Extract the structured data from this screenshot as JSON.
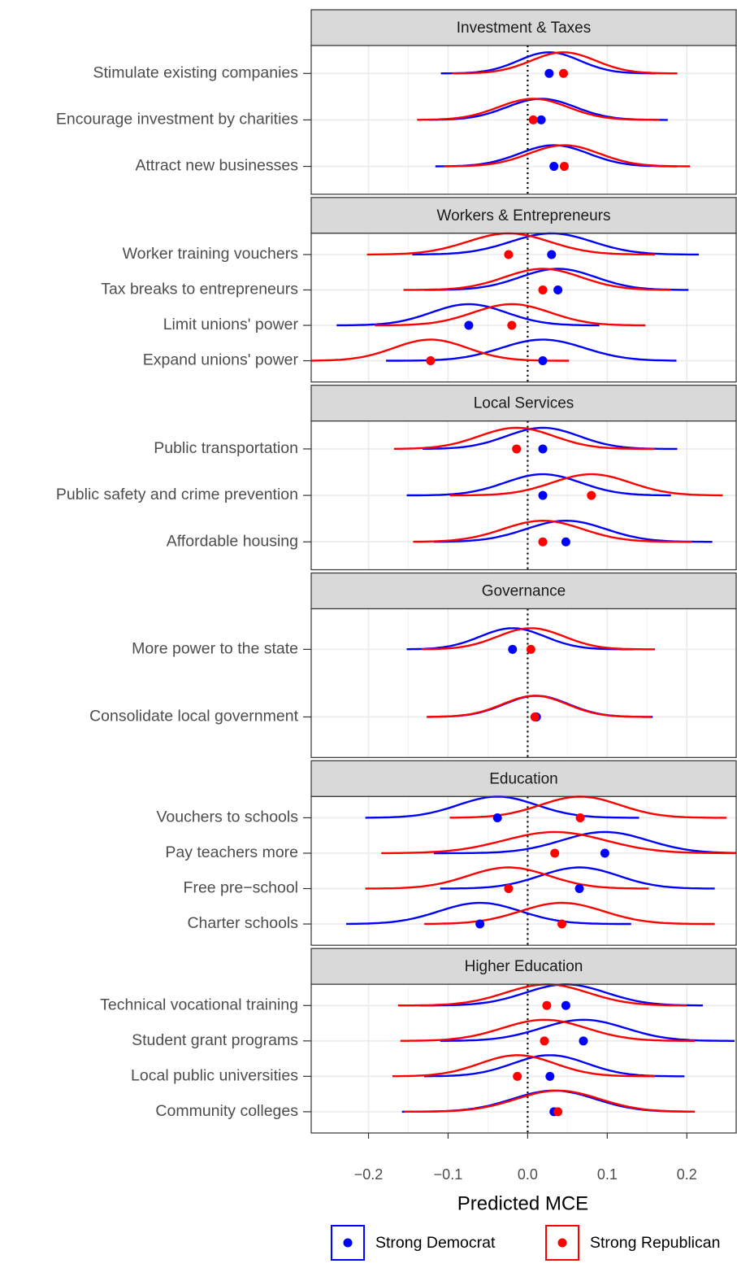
{
  "chart_data": {
    "type": "ridge_dot",
    "xlabel": "Predicted MCE",
    "xlim": [
      -0.272,
      0.262
    ],
    "xticks": [
      {
        "value": -0.2,
        "label": "−0.2"
      },
      {
        "value": -0.1,
        "label": "−0.1"
      },
      {
        "value": 0,
        "label": "0.0"
      },
      0.1,
      0.2
    ],
    "grid": true,
    "vline": 0,
    "legend": "bottom",
    "series": [
      {
        "name": "Strong Democrat",
        "color": "#0000ff"
      },
      {
        "name": "Strong Republican",
        "color": "#ff0000"
      }
    ],
    "panels": [
      {
        "title": "Investment & Taxes",
        "categories": [
          "Stimulate existing companies",
          "Encourage investment by charities",
          "Attract new businesses"
        ],
        "series": [
          {
            "values": [
              0.027,
              0.017,
              0.033
            ],
            "ranges": [
              [
                -0.109,
                0.161
              ],
              [
                -0.125,
                0.176
              ],
              [
                -0.116,
                0.188
              ]
            ]
          },
          {
            "values": [
              0.045,
              0.007,
              0.046
            ],
            "ranges": [
              [
                -0.095,
                0.188
              ],
              [
                -0.139,
                0.166
              ],
              [
                -0.105,
                0.204
              ]
            ]
          }
        ]
      },
      {
        "title": "Workers & Entrepreneurs",
        "categories": [
          "Worker training vouchers",
          "Tax breaks to entrepreneurs",
          "Limit unions' power",
          "Expand unions' power"
        ],
        "series": [
          {
            "values": [
              0.03,
              0.038,
              -0.074,
              0.019
            ],
            "ranges": [
              [
                -0.145,
                0.215
              ],
              [
                -0.13,
                0.202
              ],
              [
                -0.24,
                0.09
              ],
              [
                -0.178,
                0.187
              ]
            ]
          },
          {
            "values": [
              -0.024,
              0.019,
              -0.02,
              -0.122
            ],
            "ranges": [
              [
                -0.202,
                0.16
              ],
              [
                -0.156,
                0.18
              ],
              [
                -0.192,
                0.148
              ],
              [
                -0.272,
                0.052
              ]
            ]
          }
        ]
      },
      {
        "title": "Local Services",
        "categories": [
          "Public transportation",
          "Public safety and crime prevention",
          "Affordable housing"
        ],
        "series": [
          {
            "values": [
              0.019,
              0.019,
              0.048
            ],
            "ranges": [
              [
                -0.132,
                0.188
              ],
              [
                -0.152,
                0.18
              ],
              [
                -0.118,
                0.232
              ]
            ]
          },
          {
            "values": [
              -0.014,
              0.08,
              0.019
            ],
            "ranges": [
              [
                -0.168,
                0.16
              ],
              [
                -0.098,
                0.245
              ],
              [
                -0.144,
                0.206
              ]
            ]
          }
        ]
      },
      {
        "title": "Governance",
        "categories": [
          "More power to the state",
          "Consolidate local government"
        ],
        "series": [
          {
            "values": [
              -0.019,
              0.011
            ],
            "ranges": [
              [
                -0.152,
                0.133
              ],
              [
                -0.125,
                0.157
              ]
            ]
          },
          {
            "values": [
              0.004,
              0.009
            ],
            "ranges": [
              [
                -0.133,
                0.16
              ],
              [
                -0.127,
                0.155
              ]
            ]
          }
        ]
      },
      {
        "title": "Education",
        "categories": [
          "Vouchers to schools",
          "Pay teachers more",
          "Free pre−school",
          "Charter schools"
        ],
        "series": [
          {
            "values": [
              -0.038,
              0.097,
              0.065,
              -0.06
            ],
            "ranges": [
              [
                -0.204,
                0.14
              ],
              [
                -0.118,
                0.262
              ],
              [
                -0.11,
                0.235
              ],
              [
                -0.228,
                0.13
              ]
            ]
          },
          {
            "values": [
              0.066,
              0.034,
              -0.024,
              0.043
            ],
            "ranges": [
              [
                -0.098,
                0.25
              ],
              [
                -0.184,
                0.262
              ],
              [
                -0.204,
                0.152
              ],
              [
                -0.13,
                0.235
              ]
            ]
          }
        ]
      },
      {
        "title": "Higher Education",
        "categories": [
          "Technical vocational training",
          "Student grant programs",
          "Local public universities",
          "Community colleges"
        ],
        "series": [
          {
            "values": [
              0.048,
              0.07,
              0.028,
              0.033
            ],
            "ranges": [
              [
                -0.135,
                0.22
              ],
              [
                -0.11,
                0.26
              ],
              [
                -0.13,
                0.197
              ],
              [
                -0.158,
                0.205
              ]
            ]
          },
          {
            "values": [
              0.024,
              0.021,
              -0.013,
              0.038
            ],
            "ranges": [
              [
                -0.163,
                0.2
              ],
              [
                -0.16,
                0.21
              ],
              [
                -0.17,
                0.16
              ],
              [
                -0.155,
                0.21
              ]
            ]
          }
        ]
      }
    ]
  }
}
